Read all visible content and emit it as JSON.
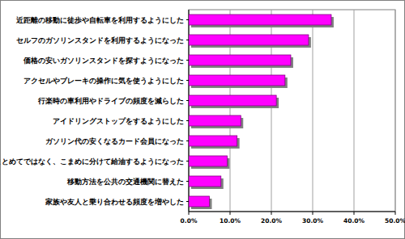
{
  "chart_data": {
    "type": "bar",
    "orientation": "horizontal",
    "categories": [
      "近距離の移動に徒歩や自転車を利用するようにした",
      "セルフのガソリンスタンドを利用するようになった",
      "価格の安いガソリンスタンドを探すようになった",
      "アクセルやブレーキの操作に気を使うようにした",
      "行楽時の車利用やドライブの頻度を減らした",
      "アイドリングストップをするようにした",
      "ガソリン代の安くなるカード会員になった",
      "まとめてではなく、こまめに分けて給油するようになった",
      "移動方法を公共の交通機関に替えた",
      "家族や友人と乗り合わせる頻度を増やした"
    ],
    "values": [
      34.5,
      29.0,
      24.7,
      23.3,
      21.2,
      12.6,
      11.7,
      9.3,
      7.8,
      5.0
    ],
    "color": "#ff00ff",
    "xlim": [
      0,
      50
    ],
    "xticks": [
      {
        "value": 0,
        "label": "0.0%"
      },
      {
        "value": 10,
        "label": "10.0%"
      },
      {
        "value": 20,
        "label": "20.0%"
      },
      {
        "value": 30,
        "label": "30.0%"
      },
      {
        "value": 40,
        "label": "40.0%"
      },
      {
        "value": 50,
        "label": "50.0%"
      }
    ],
    "grid": true
  }
}
